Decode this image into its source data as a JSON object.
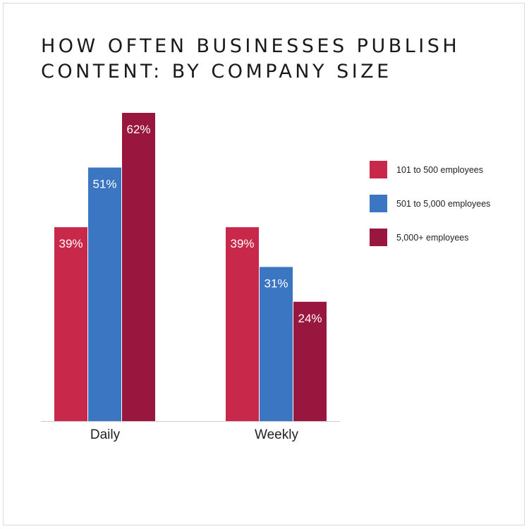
{
  "title_lines": [
    "HOW OFTEN BUSINESSES PUBLISH",
    "CONTENT: BY COMPANY SIZE"
  ],
  "chart_data": {
    "type": "bar",
    "title": "HOW OFTEN BUSINESSES PUBLISH CONTENT: BY COMPANY SIZE",
    "categories": [
      "Daily",
      "Weekly"
    ],
    "series": [
      {
        "name": "101 to 500 employees",
        "values": [
          39,
          39
        ],
        "color": "#c8284a"
      },
      {
        "name": "501 to 5,000 employees",
        "values": [
          51,
          31
        ],
        "color": "#3a76c2"
      },
      {
        "name": "5,000+ employees",
        "values": [
          62,
          24
        ],
        "color": "#99173f"
      }
    ],
    "value_suffix": "%",
    "xlabel": "",
    "ylabel": "",
    "ylim": [
      0,
      62
    ],
    "grid": false,
    "legend": "right"
  }
}
